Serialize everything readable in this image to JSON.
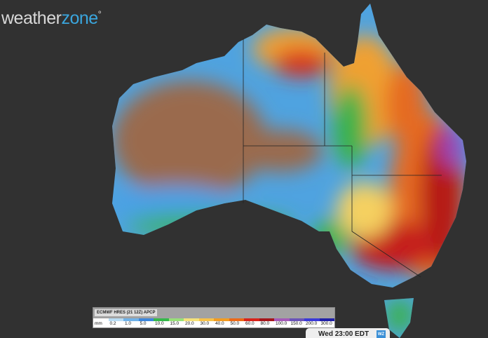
{
  "logo": {
    "part1": "weather",
    "part2": "zone",
    "degree": "°"
  },
  "legend": {
    "title": "ECMWF HRES (21 12Z) APCP",
    "unit": "mm",
    "labels": [
      "0.2",
      "1.0",
      "5.0",
      "10.0",
      "15.0",
      "20.0",
      "30.0",
      "40.0",
      "50.0",
      "60.0",
      "80.0",
      "100.0",
      "150.0",
      "200.0",
      "300.0"
    ],
    "colors": [
      "#ffffff",
      "#b8dcf4",
      "#6fb2ea",
      "#3c86dc",
      "#35b84a",
      "#98e07a",
      "#f5e27a",
      "#f7c24a",
      "#f29c22",
      "#ec6a18",
      "#d8231a",
      "#a5151a",
      "#a45ab8",
      "#6a54b8",
      "#3a3ad8",
      "#2020a8"
    ]
  },
  "timestamp": "Wed 23:00 EDT",
  "badge": "WZ"
}
